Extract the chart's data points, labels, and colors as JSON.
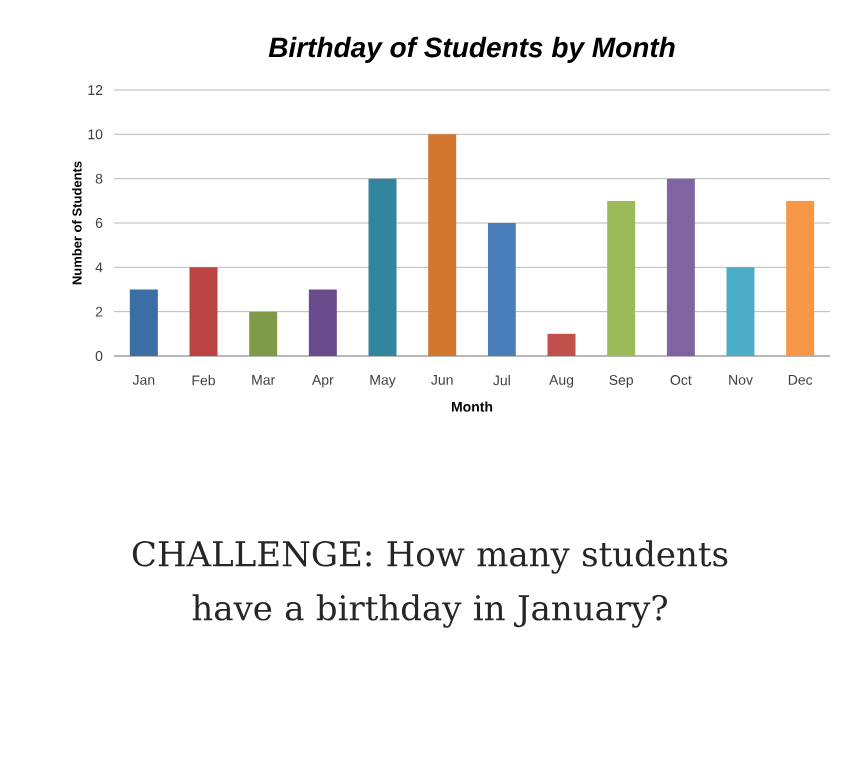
{
  "chart_data": {
    "type": "bar",
    "title": "Birthday of Students by Month",
    "xlabel": "Month",
    "ylabel": "Number of Students",
    "categories": [
      "Jan",
      "Feb",
      "Mar",
      "Apr",
      "May",
      "Jun",
      "Jul",
      "Aug",
      "Sep",
      "Oct",
      "Nov",
      "Dec"
    ],
    "values": [
      3,
      4,
      2,
      3,
      8,
      10,
      6,
      1,
      7,
      8,
      4,
      7
    ],
    "colors": [
      "#3a6ea5",
      "#b94441",
      "#7f9a48",
      "#6a4c8c",
      "#31859c",
      "#d3772f",
      "#4a7ebb",
      "#c0504d",
      "#9bbb59",
      "#8064a2",
      "#4bacc6",
      "#f79646"
    ],
    "ylim": [
      0,
      12
    ],
    "yticks": [
      0,
      2,
      4,
      6,
      8,
      10,
      12
    ],
    "grid": "y",
    "annotations": [
      "CHALLENGE: How many students have a birthday in January?"
    ]
  }
}
